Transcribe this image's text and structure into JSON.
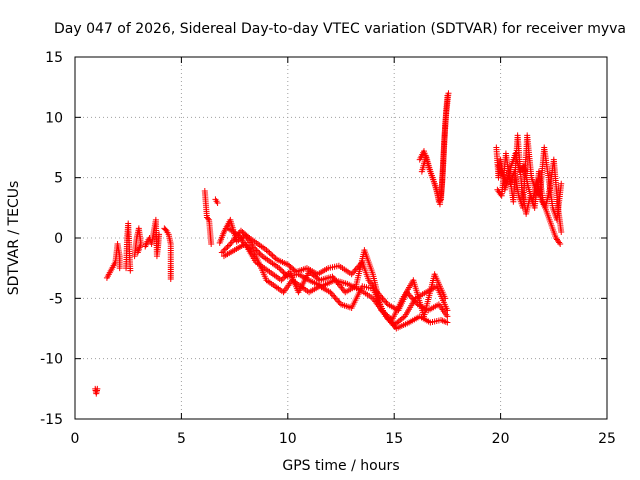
{
  "chart_data": {
    "type": "scatter",
    "title": "Day 047 of 2026, Sidereal Day-to-day VTEC variation (SDTVAR) for receiver myva",
    "xlabel": "GPS time / hours",
    "ylabel": "SDTVAR / TECUs",
    "xlim": [
      0,
      25
    ],
    "ylim": [
      -15,
      15
    ],
    "xticks": [
      0,
      5,
      10,
      15,
      20,
      25
    ],
    "yticks": [
      -15,
      -10,
      -5,
      0,
      5,
      10,
      15
    ],
    "grid": true,
    "marker": "+",
    "color": "#ff0000",
    "segments": [
      {
        "pts": [
          [
            0.95,
            -12.5
          ],
          [
            1.0,
            -12.9
          ],
          [
            1.05,
            -12.5
          ]
        ]
      },
      {
        "pts": [
          [
            1.5,
            -3.3
          ],
          [
            1.9,
            -2.0
          ],
          [
            2.0,
            -0.5
          ],
          [
            2.1,
            -1.5
          ],
          [
            2.1,
            -2.5
          ]
        ]
      },
      {
        "pts": [
          [
            2.4,
            -2.5
          ],
          [
            2.45,
            0.0
          ],
          [
            2.5,
            1.2
          ],
          [
            2.6,
            -2.7
          ]
        ]
      },
      {
        "pts": [
          [
            2.8,
            -1.5
          ],
          [
            2.9,
            0.0
          ],
          [
            3.0,
            0.8
          ],
          [
            3.1,
            -0.5
          ],
          [
            2.95,
            -1.2
          ]
        ]
      },
      {
        "pts": [
          [
            3.3,
            -0.7
          ],
          [
            3.4,
            -0.3
          ],
          [
            3.5,
            0.0
          ],
          [
            3.6,
            -0.5
          ],
          [
            3.7,
            0.5
          ],
          [
            3.8,
            1.5
          ],
          [
            3.85,
            -1.5
          ],
          [
            3.9,
            -0.8
          ],
          [
            3.95,
            0.3
          ]
        ]
      },
      {
        "pts": [
          [
            4.2,
            0.8
          ],
          [
            4.3,
            0.6
          ],
          [
            4.4,
            0.3
          ],
          [
            4.5,
            -0.5
          ],
          [
            4.5,
            -2.3
          ],
          [
            4.5,
            -3.4
          ]
        ]
      },
      {
        "pts": [
          [
            6.1,
            3.9
          ],
          [
            6.2,
            1.7
          ],
          [
            6.3,
            1.5
          ],
          [
            6.4,
            -0.5
          ]
        ]
      },
      {
        "pts": [
          [
            6.6,
            3.2
          ],
          [
            6.7,
            2.9
          ]
        ]
      },
      {
        "pts": [
          [
            6.8,
            -0.4
          ],
          [
            7.0,
            0.5
          ],
          [
            7.3,
            1.5
          ],
          [
            7.6,
            -0.3
          ],
          [
            8.0,
            0.2
          ],
          [
            8.4,
            -0.8
          ],
          [
            8.8,
            -1.5
          ],
          [
            9.2,
            -2.0
          ],
          [
            9.6,
            -2.5
          ],
          [
            10.0,
            -3.2
          ],
          [
            10.5,
            -3.0
          ],
          [
            11.0,
            -3.5
          ],
          [
            11.6,
            -4.0
          ],
          [
            12.2,
            -3.5
          ],
          [
            12.8,
            -3.8
          ],
          [
            13.4,
            -4.3
          ],
          [
            14.0,
            -5.0
          ],
          [
            14.5,
            -6.2
          ],
          [
            15.0,
            -7.2
          ],
          [
            15.5,
            -6.5
          ],
          [
            16.0,
            -5.0
          ],
          [
            16.5,
            -4.5
          ],
          [
            17.0,
            -4.0
          ],
          [
            17.5,
            -6.0
          ]
        ]
      },
      {
        "pts": [
          [
            6.9,
            -1.2
          ],
          [
            7.3,
            -0.5
          ],
          [
            7.8,
            0.6
          ],
          [
            8.2,
            0.0
          ],
          [
            8.6,
            -0.5
          ],
          [
            9.0,
            -1.0
          ],
          [
            9.5,
            -1.8
          ],
          [
            10.0,
            -2.2
          ],
          [
            10.4,
            -2.8
          ],
          [
            10.9,
            -2.5
          ],
          [
            11.4,
            -3.0
          ],
          [
            11.9,
            -2.5
          ],
          [
            12.4,
            -2.3
          ],
          [
            13.0,
            -3.0
          ],
          [
            13.5,
            -2.0
          ],
          [
            13.8,
            -3.5
          ],
          [
            14.2,
            -4.5
          ],
          [
            14.7,
            -5.5
          ],
          [
            15.2,
            -6.0
          ],
          [
            15.6,
            -4.5
          ],
          [
            16.1,
            -5.5
          ],
          [
            16.6,
            -6.0
          ],
          [
            17.1,
            -5.5
          ],
          [
            17.5,
            -6.5
          ]
        ]
      },
      {
        "pts": [
          [
            7.0,
            -1.5
          ],
          [
            7.5,
            -1.0
          ],
          [
            8.0,
            -0.5
          ],
          [
            8.5,
            -1.5
          ],
          [
            9.0,
            -3.5
          ],
          [
            9.4,
            -4.0
          ],
          [
            9.8,
            -4.5
          ],
          [
            10.2,
            -3.5
          ],
          [
            10.6,
            -4.0
          ],
          [
            11.0,
            -4.5
          ],
          [
            11.5,
            -4.0
          ],
          [
            12.0,
            -4.5
          ],
          [
            12.5,
            -5.5
          ],
          [
            13.0,
            -5.8
          ],
          [
            13.5,
            -4.0
          ],
          [
            14.0,
            -4.2
          ],
          [
            14.6,
            -6.5
          ],
          [
            15.1,
            -7.5
          ],
          [
            15.7,
            -7.0
          ],
          [
            16.2,
            -6.5
          ],
          [
            16.7,
            -7.0
          ],
          [
            17.2,
            -6.8
          ],
          [
            17.5,
            -7.0
          ]
        ]
      },
      {
        "pts": [
          [
            7.2,
            0.8
          ],
          [
            7.7,
            0.2
          ],
          [
            8.1,
            -0.8
          ],
          [
            8.5,
            -2.0
          ],
          [
            8.9,
            -2.5
          ],
          [
            9.3,
            -3.0
          ],
          [
            9.7,
            -3.5
          ],
          [
            10.1,
            -2.8
          ],
          [
            10.5,
            -4.5
          ],
          [
            11.0,
            -2.8
          ],
          [
            11.5,
            -3.5
          ],
          [
            12.1,
            -3.2
          ],
          [
            12.7,
            -4.5
          ],
          [
            13.2,
            -4.0
          ],
          [
            13.6,
            -1.0
          ],
          [
            14.0,
            -3.0
          ],
          [
            14.4,
            -6.0
          ],
          [
            14.9,
            -6.8
          ],
          [
            15.4,
            -5.0
          ],
          [
            15.9,
            -3.5
          ],
          [
            16.4,
            -6.5
          ],
          [
            16.9,
            -3.0
          ],
          [
            17.4,
            -5.0
          ]
        ]
      },
      {
        "pts": [
          [
            16.2,
            6.5
          ],
          [
            16.4,
            7.2
          ],
          [
            16.6,
            6.0
          ],
          [
            16.8,
            5.0
          ],
          [
            17.0,
            4.0
          ],
          [
            17.1,
            3.0
          ],
          [
            17.2,
            3.2
          ],
          [
            17.3,
            6.0
          ],
          [
            17.4,
            9.5
          ],
          [
            17.5,
            11.8
          ]
        ]
      },
      {
        "pts": [
          [
            16.3,
            5.5
          ],
          [
            16.5,
            6.8
          ],
          [
            16.7,
            5.5
          ],
          [
            16.9,
            4.5
          ],
          [
            17.05,
            3.5
          ],
          [
            17.15,
            2.8
          ],
          [
            17.25,
            4.5
          ],
          [
            17.35,
            8.0
          ],
          [
            17.45,
            10.5
          ],
          [
            17.55,
            12.0
          ]
        ]
      },
      {
        "pts": [
          [
            19.8,
            7.5
          ],
          [
            19.9,
            5.0
          ],
          [
            20.0,
            6.5
          ],
          [
            20.2,
            4.0
          ],
          [
            20.4,
            5.5
          ],
          [
            20.6,
            3.0
          ],
          [
            20.8,
            8.5
          ],
          [
            21.0,
            4.0
          ],
          [
            21.2,
            2.0
          ],
          [
            21.4,
            3.5
          ],
          [
            21.6,
            2.5
          ],
          [
            21.8,
            5.5
          ],
          [
            22.0,
            3.0
          ],
          [
            22.2,
            2.0
          ],
          [
            22.4,
            1.0
          ],
          [
            22.6,
            0.0
          ],
          [
            22.8,
            -0.5
          ]
        ]
      },
      {
        "pts": [
          [
            19.85,
            4.0
          ],
          [
            20.05,
            3.5
          ],
          [
            20.25,
            7.0
          ],
          [
            20.45,
            4.5
          ],
          [
            20.65,
            5.5
          ],
          [
            20.85,
            3.5
          ],
          [
            21.05,
            2.5
          ],
          [
            21.25,
            8.5
          ],
          [
            21.45,
            5.0
          ],
          [
            21.65,
            4.0
          ],
          [
            21.85,
            3.5
          ],
          [
            22.05,
            7.5
          ],
          [
            22.25,
            5.0
          ],
          [
            22.45,
            2.5
          ],
          [
            22.65,
            1.5
          ],
          [
            22.85,
            4.5
          ]
        ]
      },
      {
        "pts": [
          [
            19.9,
            6.0
          ],
          [
            20.1,
            5.2
          ],
          [
            20.3,
            4.5
          ],
          [
            20.5,
            6.0
          ],
          [
            20.7,
            7.0
          ],
          [
            20.9,
            5.5
          ],
          [
            21.1,
            6.0
          ],
          [
            21.3,
            4.2
          ],
          [
            21.5,
            3.0
          ],
          [
            21.7,
            4.8
          ],
          [
            21.9,
            3.2
          ],
          [
            22.1,
            2.5
          ],
          [
            22.3,
            4.0
          ],
          [
            22.5,
            6.5
          ],
          [
            22.7,
            2.5
          ],
          [
            22.85,
            0.5
          ]
        ]
      }
    ]
  }
}
